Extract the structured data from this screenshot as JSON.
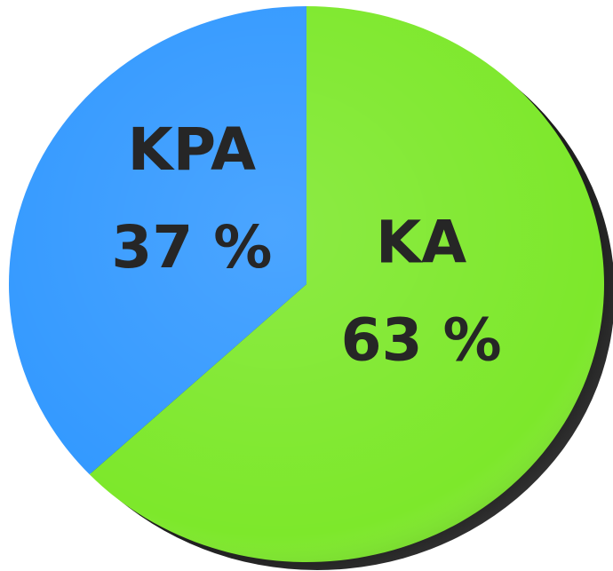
{
  "chart_data": {
    "type": "pie",
    "categories": [
      "KA",
      "KPA"
    ],
    "values": [
      63,
      37
    ],
    "value_labels": [
      "63 %",
      "37 %"
    ],
    "colors": [
      "#7de82b",
      "#3399ff"
    ]
  }
}
